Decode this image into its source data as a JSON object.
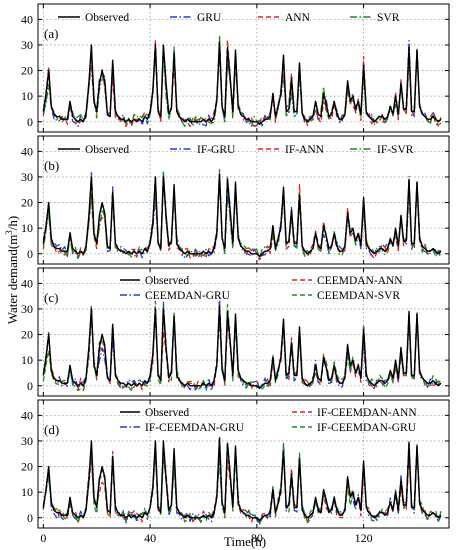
{
  "figure": {
    "xlabel": "Time(h)",
    "ylabel_main": "Water demand(m",
    "ylabel_sup": "3",
    "ylabel_tail": "/h)"
  },
  "chart_data": [
    {
      "type": "line",
      "panel_label": "(a)",
      "xlim": [
        -2,
        152
      ],
      "ylim": [
        -4,
        46
      ],
      "yticks": [
        0,
        10,
        20,
        30,
        40
      ],
      "xticks": [
        0,
        40,
        80,
        120
      ],
      "grid": true,
      "legend_position": "top",
      "series": [
        {
          "name": "Observed",
          "color": "#000000",
          "dash": "solid"
        },
        {
          "name": "GRU",
          "color": "#1f3fd6",
          "dash": "dashdot",
          "seed": 11
        },
        {
          "name": "ANN",
          "color": "#e8201c",
          "dash": "dashed",
          "seed": 23
        },
        {
          "name": "SVR",
          "color": "#1b8a1b",
          "dash": "dashdot",
          "seed": 37
        }
      ]
    },
    {
      "type": "line",
      "panel_label": "(b)",
      "xlim": [
        -2,
        152
      ],
      "ylim": [
        -4,
        46
      ],
      "yticks": [
        0,
        10,
        20,
        30,
        40
      ],
      "xticks": [
        0,
        40,
        80,
        120
      ],
      "grid": true,
      "legend_position": "top",
      "series": [
        {
          "name": "Observed",
          "color": "#000000",
          "dash": "solid"
        },
        {
          "name": "IF-GRU",
          "color": "#1f3fd6",
          "dash": "dashdot",
          "seed": 41
        },
        {
          "name": "IF-ANN",
          "color": "#e8201c",
          "dash": "dashed",
          "seed": 53
        },
        {
          "name": "IF-SVR",
          "color": "#1b8a1b",
          "dash": "dashdot",
          "seed": 67
        }
      ]
    },
    {
      "type": "line",
      "panel_label": "(c)",
      "xlim": [
        -2,
        152
      ],
      "ylim": [
        -4,
        46
      ],
      "yticks": [
        0,
        10,
        20,
        30,
        40
      ],
      "xticks": [
        0,
        40,
        80,
        120
      ],
      "grid": true,
      "legend_position": "top-right",
      "series": [
        {
          "name": "Observed",
          "color": "#000000",
          "dash": "solid"
        },
        {
          "name": "CEEMDAN-ANN",
          "color": "#e8201c",
          "dash": "dashed",
          "seed": 71
        },
        {
          "name": "CEEMDAN-GRU",
          "color": "#1f3fd6",
          "dash": "dashdot",
          "seed": 83
        },
        {
          "name": "CEEMDAN-SVR",
          "color": "#1b8a1b",
          "dash": "dashed",
          "seed": 97
        }
      ]
    },
    {
      "type": "line",
      "panel_label": "(d)",
      "xlim": [
        -2,
        152
      ],
      "ylim": [
        -4,
        46
      ],
      "yticks": [
        0,
        10,
        20,
        30,
        40
      ],
      "xticks": [
        0,
        40,
        80,
        120
      ],
      "grid": true,
      "legend_position": "top-right",
      "series": [
        {
          "name": "Observed",
          "color": "#000000",
          "dash": "solid"
        },
        {
          "name": "IF-CEEMDAN-ANN",
          "color": "#e8201c",
          "dash": "dashed",
          "seed": 101
        },
        {
          "name": "IF-CEEMDAN-GRU",
          "color": "#1f3fd6",
          "dash": "dashdot",
          "seed": 113
        },
        {
          "name": "IF-CEEMDAN-GRU",
          "color": "#1b8a1b",
          "dash": "dashed",
          "seed": 127
        }
      ]
    }
  ],
  "observed_series": {
    "x_start": 0,
    "x_step": 1,
    "y": [
      4,
      11,
      20,
      6,
      3,
      2,
      2,
      1,
      1,
      1,
      8,
      2,
      1,
      0,
      1,
      0,
      3,
      14,
      30,
      8,
      4,
      15,
      20,
      16,
      3,
      2,
      24,
      4,
      2,
      1,
      1,
      0,
      1,
      0,
      1,
      0,
      1,
      0,
      2,
      1,
      4,
      12,
      30,
      4,
      2,
      30,
      15,
      3,
      5,
      27,
      4,
      2,
      1,
      0,
      1,
      0,
      0,
      0,
      0,
      0,
      1,
      0,
      1,
      0,
      2,
      8,
      31,
      6,
      2,
      29,
      17,
      4,
      28,
      6,
      3,
      2,
      1,
      1,
      0,
      0,
      0,
      -1,
      0,
      1,
      1,
      2,
      11,
      2,
      6,
      11,
      26,
      4,
      5,
      17,
      4,
      4,
      23,
      3,
      1,
      0,
      1,
      2,
      8,
      3,
      2,
      11,
      7,
      2,
      3,
      8,
      3,
      1,
      1,
      3,
      16,
      8,
      10,
      5,
      8,
      3,
      22,
      4,
      2,
      1,
      0,
      1,
      2,
      2,
      1,
      2,
      6,
      3,
      10,
      3,
      15,
      5,
      5,
      29,
      4,
      4,
      28,
      6,
      3,
      2,
      1,
      1,
      2,
      1,
      0,
      1
    ]
  }
}
